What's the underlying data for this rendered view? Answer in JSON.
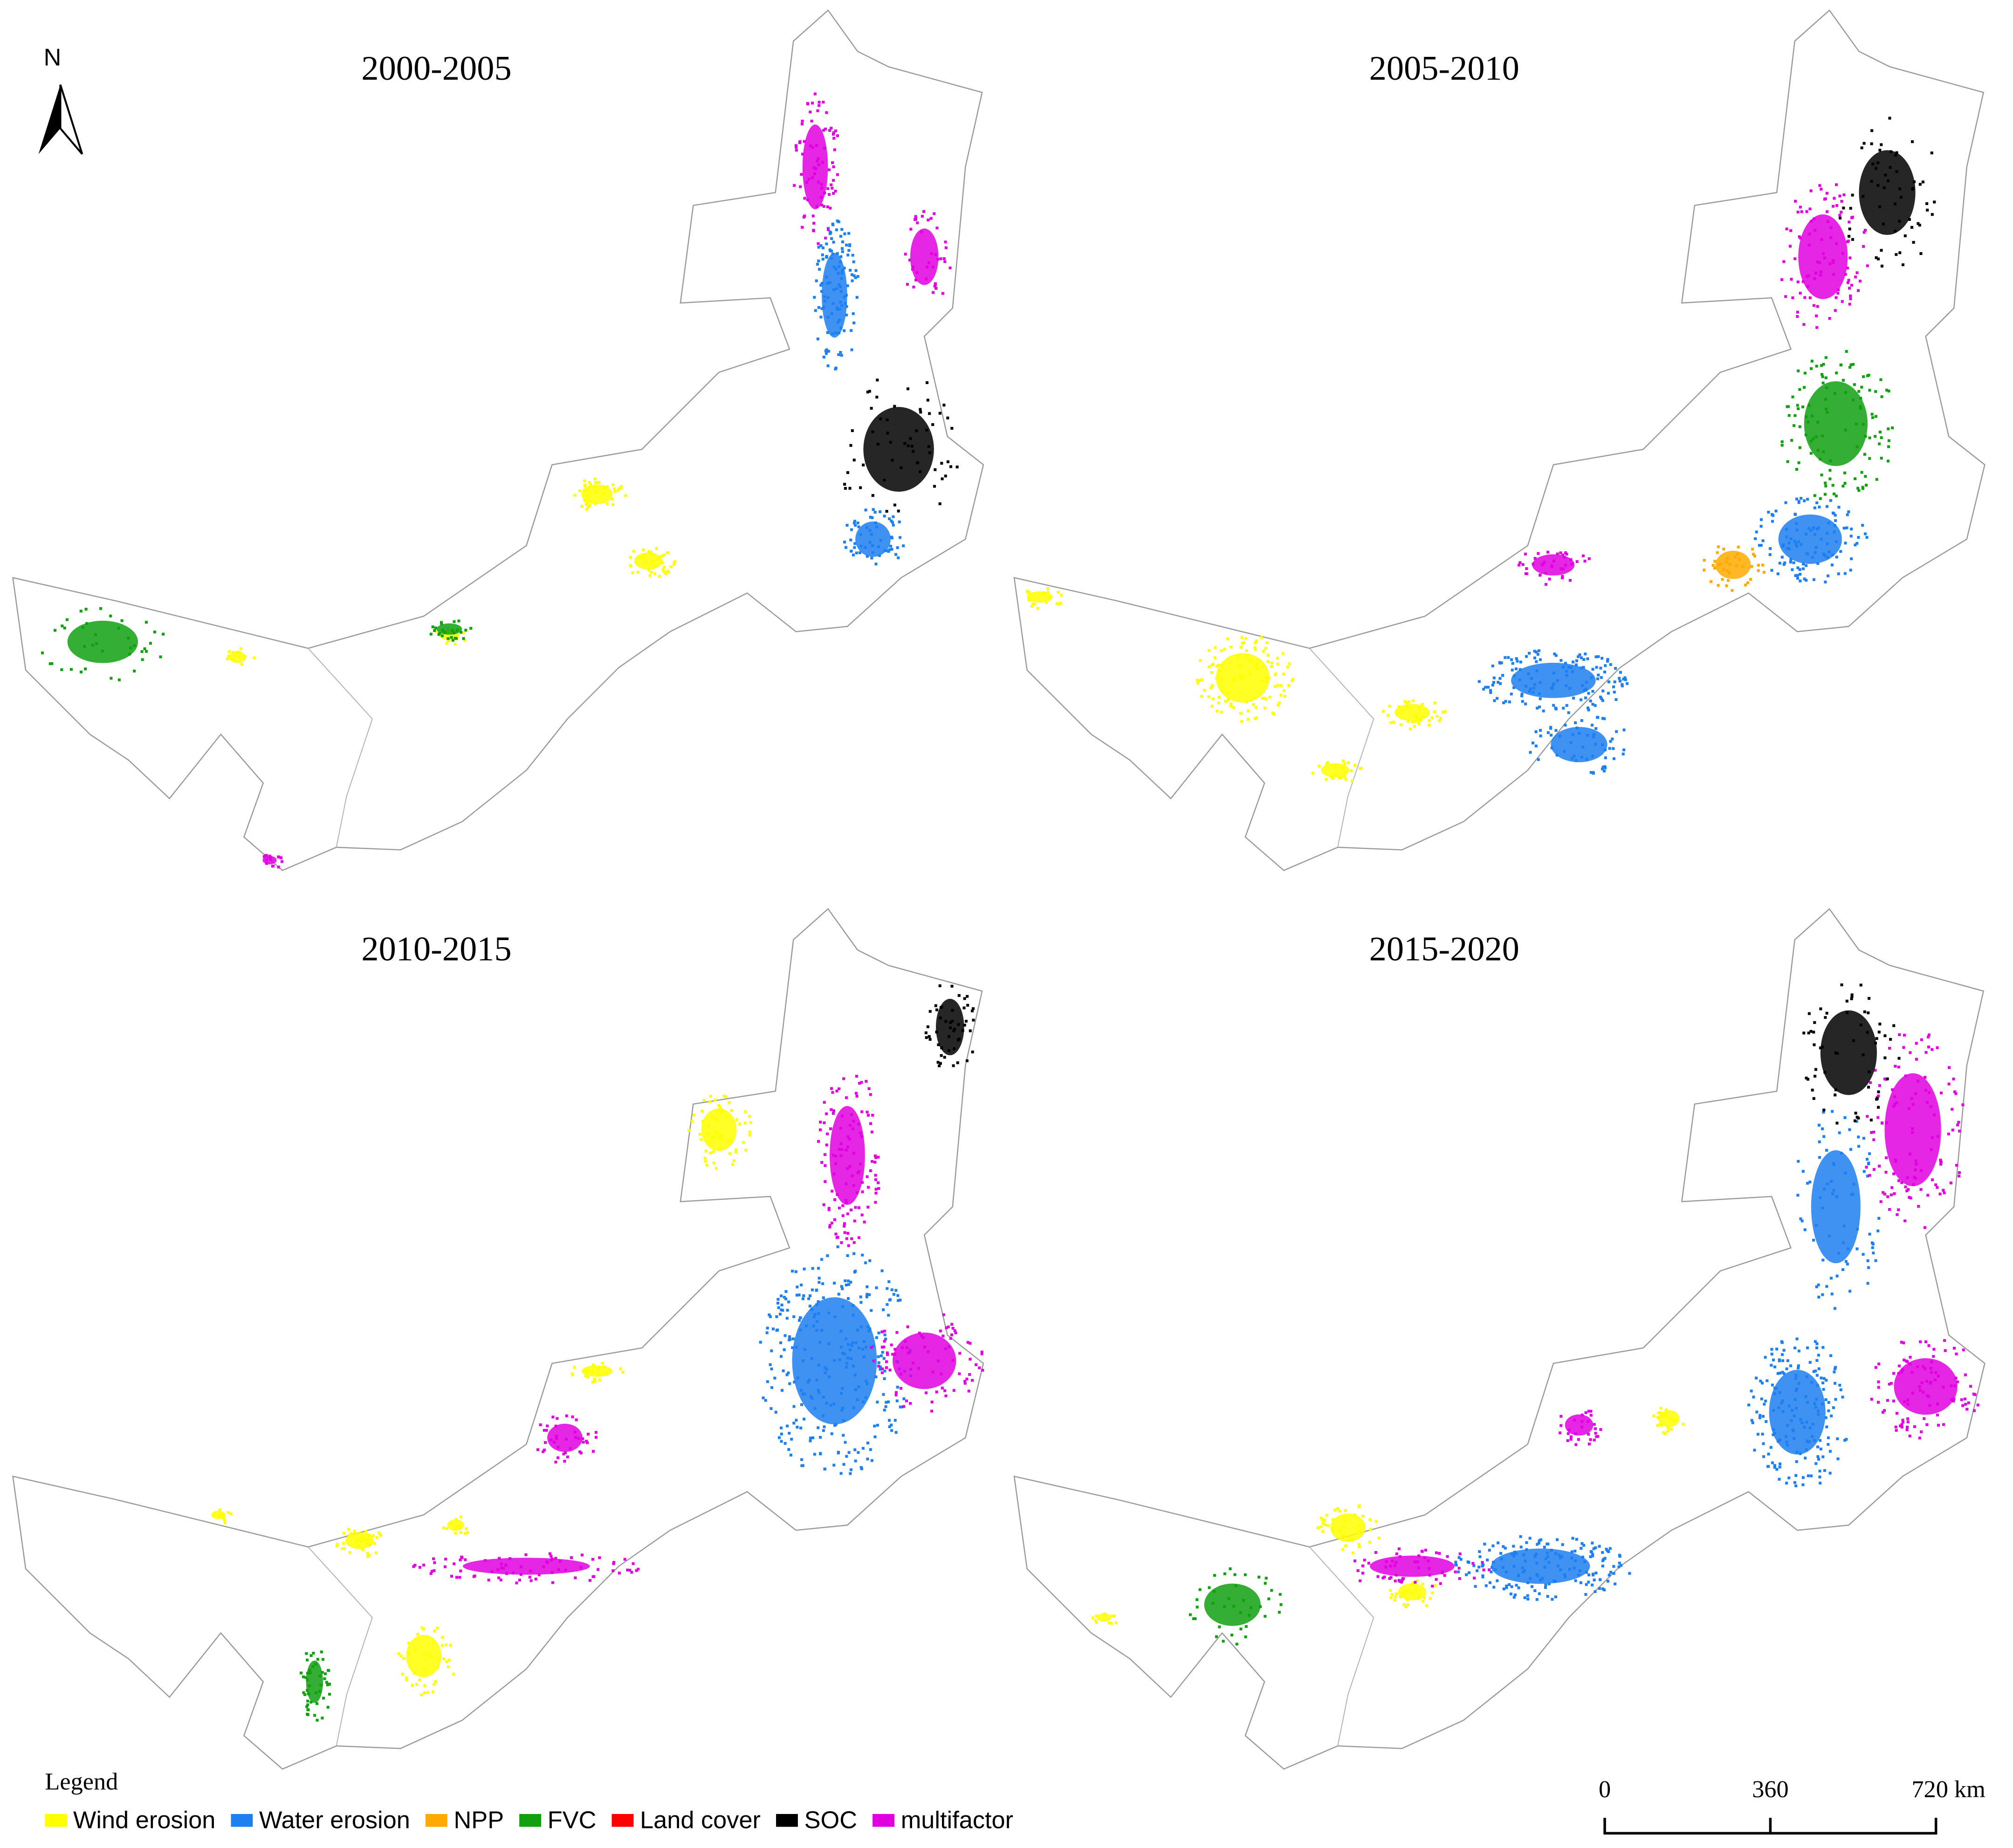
{
  "panels": [
    {
      "title": "2000-2005"
    },
    {
      "title": "2005-2010"
    },
    {
      "title": "2010-2015"
    },
    {
      "title": "2015-2020"
    }
  ],
  "north_arrow": {
    "label": "N"
  },
  "legend": {
    "title": "Legend",
    "items": [
      {
        "label": "Wind erosion",
        "color": "#ffff00"
      },
      {
        "label": "Water erosion",
        "color": "#1e7ff0"
      },
      {
        "label": "NPP",
        "color": "#ffaa00"
      },
      {
        "label": "FVC",
        "color": "#10a010"
      },
      {
        "label": "Land cover",
        "color": "#ff0000"
      },
      {
        "label": "SOC",
        "color": "#000000"
      },
      {
        "label": "multifactor",
        "color": "#e000e0"
      }
    ]
  },
  "scale_bar": {
    "labels": [
      "0",
      "360",
      "720 km"
    ]
  }
}
